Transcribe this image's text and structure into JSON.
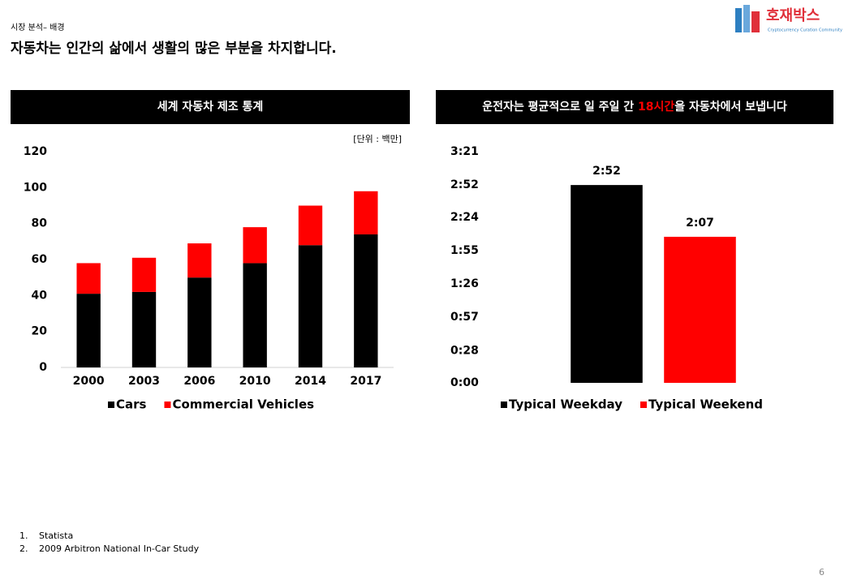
{
  "header": {
    "breadcrumb": "시장 분석– 배경",
    "title": "자동차는 인간의 삶에서 생활의 많은 부분을 차지합니다."
  },
  "logo": {
    "name": "호재박스",
    "tagline": "Cryptocurrency Curation Community"
  },
  "chart_data": [
    {
      "type": "stacked_bar",
      "title": "세계 자동차 제조 통계",
      "unit_note": "[단위 : 백만]",
      "categories": [
        "2000",
        "2003",
        "2006",
        "2010",
        "2014",
        "2017"
      ],
      "series": [
        {
          "name": "Cars",
          "color": "#000000",
          "values": [
            41,
            42,
            50,
            58,
            68,
            74
          ]
        },
        {
          "name": "Commercial Vehicles",
          "color": "#ff0000",
          "values": [
            17,
            19,
            19,
            20,
            22,
            24
          ]
        }
      ],
      "ylim": [
        0,
        120
      ],
      "yticks": [
        0,
        20,
        40,
        60,
        80,
        100,
        120
      ]
    },
    {
      "type": "bar",
      "title": [
        "운전자는 평균적으로 일 주일 간 ",
        "18시간",
        "을 자동차에서 보냅니다"
      ],
      "title_highlight": 1,
      "highlight_color": "#ff0000",
      "categories": [
        "Typical Weekday",
        "Typical Weekend"
      ],
      "colors": [
        "#000000",
        "#ff0000"
      ],
      "values": [
        172,
        127
      ],
      "value_labels": [
        "2:52",
        "2:07"
      ],
      "ylim": [
        0,
        201
      ],
      "yticks": [
        {
          "value": 0,
          "label": "0:00"
        },
        {
          "value": 28,
          "label": "0:28"
        },
        {
          "value": 57,
          "label": "0:57"
        },
        {
          "value": 86,
          "label": "1:26"
        },
        {
          "value": 115,
          "label": "1:55"
        },
        {
          "value": 144,
          "label": "2:24"
        },
        {
          "value": 172,
          "label": "2:52"
        },
        {
          "value": 201,
          "label": "3:21"
        }
      ]
    }
  ],
  "footnotes": [
    "Statista",
    "2009 Arbitron National In-Car Study"
  ],
  "page_number": 6
}
